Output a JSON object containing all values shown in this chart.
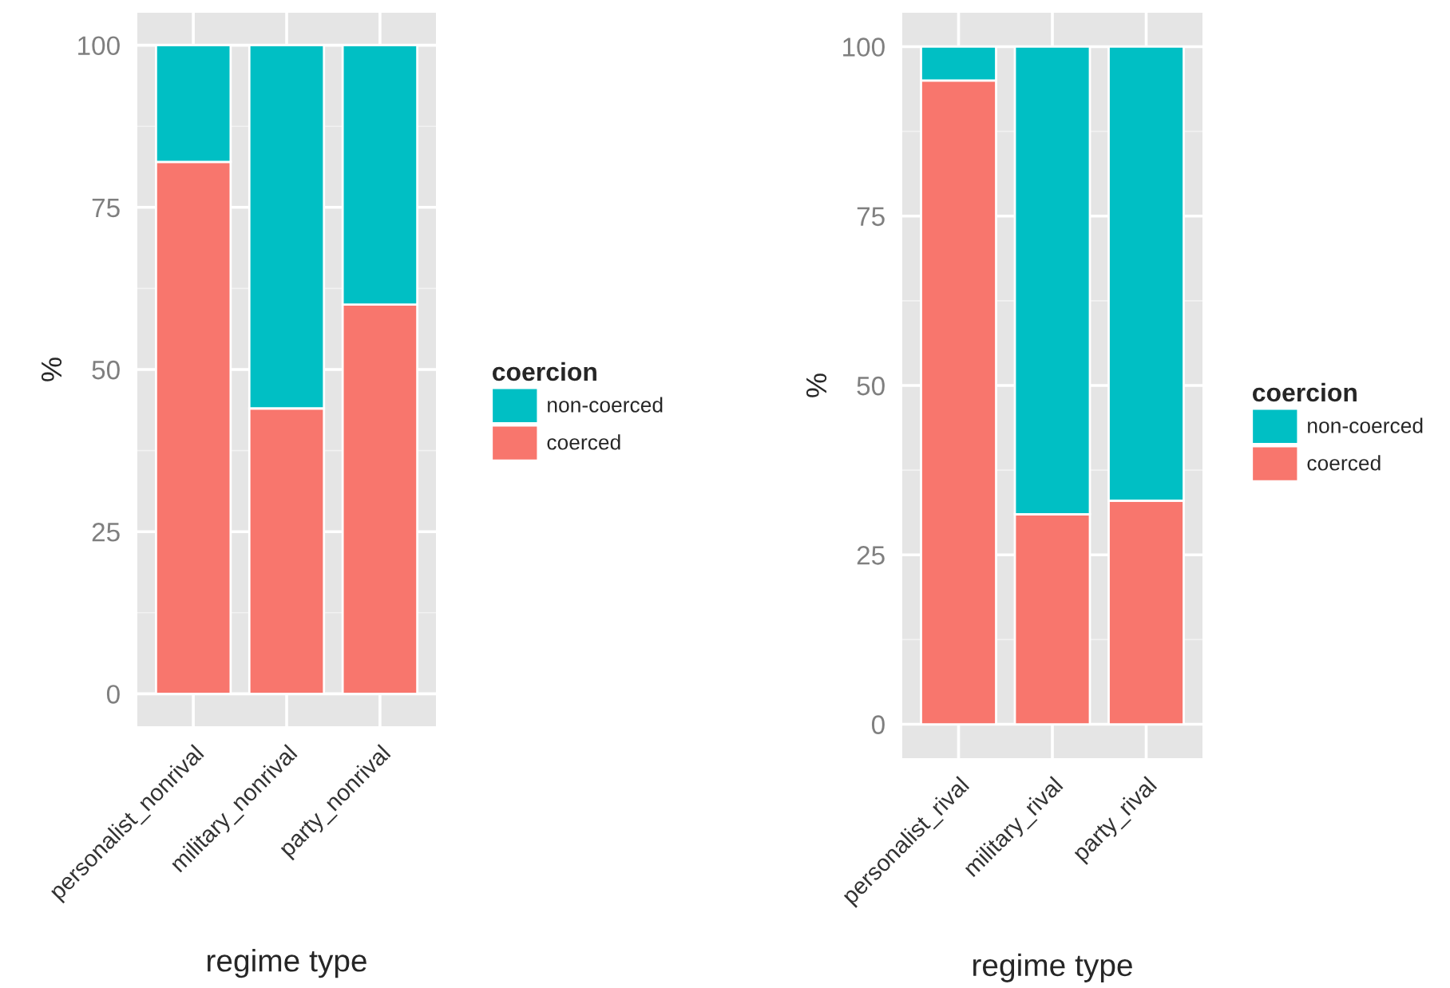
{
  "chart_data": [
    {
      "type": "bar",
      "stacked": true,
      "xlabel": "regime type",
      "ylabel": "%",
      "legend_title": "coercion",
      "legend": "right",
      "categories": [
        "personalist_nonrival",
        "military_nonrival",
        "party_nonrival"
      ],
      "series": [
        {
          "name": "coerced",
          "color": "#f8766d",
          "values": [
            82,
            44,
            60
          ]
        },
        {
          "name": "non-coerced",
          "color": "#00bfc4",
          "values": [
            18,
            56,
            40
          ]
        }
      ],
      "ylim": [
        -5,
        105
      ],
      "yticks": [
        0,
        25,
        50,
        75,
        100
      ],
      "grid": true
    },
    {
      "type": "bar",
      "stacked": true,
      "xlabel": "regime type",
      "ylabel": "%",
      "legend_title": "coercion",
      "legend": "right",
      "categories": [
        "personalist_rival",
        "military_rival",
        "party_rival"
      ],
      "series": [
        {
          "name": "coerced",
          "color": "#f8766d",
          "values": [
            95,
            31,
            33
          ]
        },
        {
          "name": "non-coerced",
          "color": "#00bfc4",
          "values": [
            5,
            69,
            67
          ]
        }
      ],
      "ylim": [
        -5,
        105
      ],
      "yticks": [
        0,
        25,
        50,
        75,
        100
      ],
      "grid": true
    }
  ]
}
